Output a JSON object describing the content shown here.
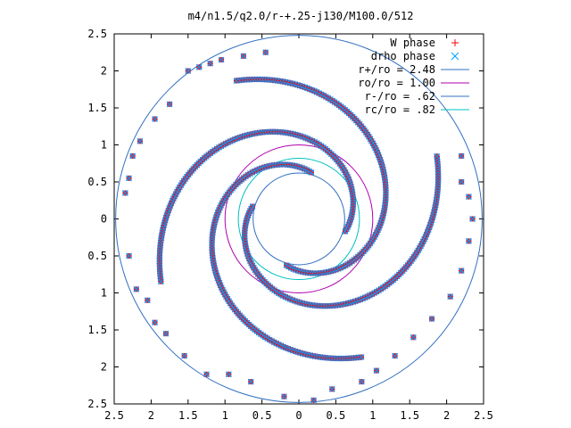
{
  "chart_data": {
    "type": "scatter",
    "title": "m4/n1.5/q2.0/r-+.25-j130/M100.0/512",
    "xlabel": "",
    "ylabel": "",
    "xlim": [
      -2.5,
      2.5
    ],
    "ylim": [
      -2.5,
      2.5
    ],
    "x_ticks": [
      "2.5",
      "2",
      "1.5",
      "1",
      "0.5",
      "0",
      "0.5",
      "1",
      "1.5",
      "2",
      "2.5"
    ],
    "y_ticks": [
      "2.5",
      "2",
      "1.5",
      "1",
      "0.5",
      "0",
      "0.5",
      "1",
      "1.5",
      "2",
      "2.5"
    ],
    "grid": false,
    "legend_position": "top-right",
    "legend": [
      {
        "label": "W phase",
        "marker": "plus",
        "color": "#ff0000"
      },
      {
        "label": "drho phase",
        "marker": "cross",
        "color": "#00a0ff"
      },
      {
        "label": "r+/ro = 2.48",
        "line": true,
        "color": "#3070c0"
      },
      {
        "label": "ro/ro = 1.00",
        "line": true,
        "color": "#b000b0"
      },
      {
        "label": "r-/ro = .62",
        "line": true,
        "color": "#3070c0"
      },
      {
        "label": "rc/ro = .82",
        "line": true,
        "color": "#00c0c0"
      }
    ],
    "circles": [
      {
        "name": "r+",
        "r": 2.48,
        "color": "#3070c0"
      },
      {
        "name": "ro",
        "r": 1.0,
        "color": "#b000b0"
      },
      {
        "name": "r-",
        "r": 0.62,
        "color": "#3070c0"
      },
      {
        "name": "rc",
        "r": 0.82,
        "color": "#00c0c0"
      }
    ],
    "series": [
      {
        "name": "W phase",
        "color": "#ff0000",
        "marker": "plus"
      },
      {
        "name": "drho phase",
        "color": "#00a0ff",
        "marker": "cross"
      }
    ],
    "spiral_arms": [
      {
        "phase_deg": 75,
        "pitch": 0.3,
        "r_start": 0.65,
        "r_end": 2.05
      },
      {
        "phase_deg": 165,
        "pitch": 0.3,
        "r_start": 0.65,
        "r_end": 2.05
      },
      {
        "phase_deg": 255,
        "pitch": 0.3,
        "r_start": 0.65,
        "r_end": 2.05
      },
      {
        "phase_deg": 345,
        "pitch": 0.3,
        "r_start": 0.65,
        "r_end": 2.05
      }
    ],
    "outer_points": [
      {
        "x": -1.5,
        "y": 2.0
      },
      {
        "x": -1.35,
        "y": 2.05
      },
      {
        "x": -1.2,
        "y": 2.1
      },
      {
        "x": -1.05,
        "y": 2.15
      },
      {
        "x": -0.75,
        "y": 2.2
      },
      {
        "x": -0.45,
        "y": 2.25
      },
      {
        "x": -1.75,
        "y": 1.55
      },
      {
        "x": -1.95,
        "y": 1.35
      },
      {
        "x": -2.15,
        "y": 1.05
      },
      {
        "x": -2.25,
        "y": 0.85
      },
      {
        "x": -2.3,
        "y": 0.55
      },
      {
        "x": -2.35,
        "y": 0.35
      },
      {
        "x": -2.3,
        "y": -0.5
      },
      {
        "x": -2.2,
        "y": -0.95
      },
      {
        "x": -2.05,
        "y": -1.1
      },
      {
        "x": -1.95,
        "y": -1.4
      },
      {
        "x": -1.8,
        "y": -1.55
      },
      {
        "x": -1.55,
        "y": -1.85
      },
      {
        "x": -1.25,
        "y": -2.1
      },
      {
        "x": -0.95,
        "y": -2.1
      },
      {
        "x": -0.65,
        "y": -2.2
      },
      {
        "x": -0.2,
        "y": -2.4
      },
      {
        "x": 0.2,
        "y": -2.45
      },
      {
        "x": 0.45,
        "y": -2.3
      },
      {
        "x": 0.85,
        "y": -2.2
      },
      {
        "x": 1.05,
        "y": -2.05
      },
      {
        "x": 1.3,
        "y": -1.85
      },
      {
        "x": 1.55,
        "y": -1.6
      },
      {
        "x": 1.8,
        "y": -1.35
      },
      {
        "x": 2.05,
        "y": -1.05
      },
      {
        "x": 2.2,
        "y": -0.7
      },
      {
        "x": 2.3,
        "y": -0.3
      },
      {
        "x": 2.35,
        "y": 0.0
      },
      {
        "x": 2.3,
        "y": 0.3
      },
      {
        "x": 2.2,
        "y": 0.5
      },
      {
        "x": 2.2,
        "y": 0.85
      }
    ]
  }
}
